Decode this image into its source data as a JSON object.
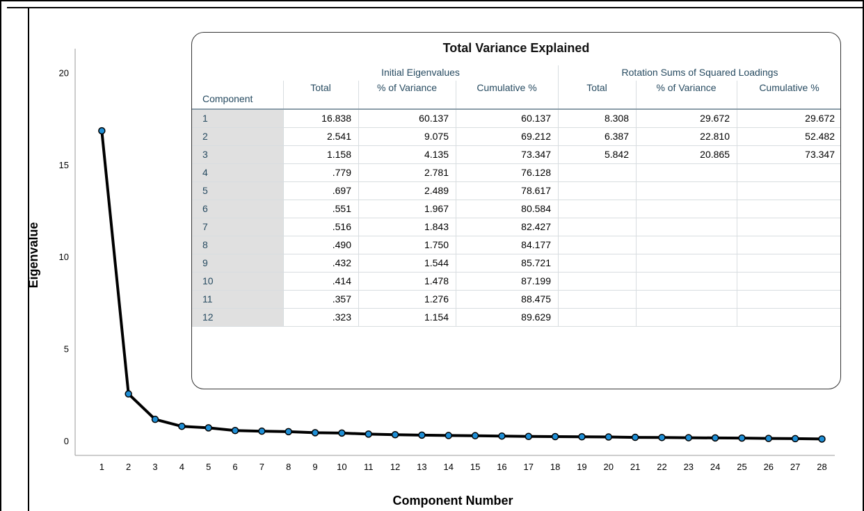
{
  "chart_data": {
    "type": "line",
    "xlabel": "Component Number",
    "ylabel": "Eigenvalue",
    "x": [
      1,
      2,
      3,
      4,
      5,
      6,
      7,
      8,
      9,
      10,
      11,
      12,
      13,
      14,
      15,
      16,
      17,
      18,
      19,
      20,
      21,
      22,
      23,
      24,
      25,
      26,
      27,
      28
    ],
    "y": [
      16.838,
      2.541,
      1.158,
      0.779,
      0.697,
      0.551,
      0.516,
      0.49,
      0.432,
      0.414,
      0.357,
      0.323,
      0.3,
      0.28,
      0.27,
      0.25,
      0.23,
      0.22,
      0.21,
      0.2,
      0.18,
      0.17,
      0.16,
      0.15,
      0.14,
      0.12,
      0.11,
      0.09
    ],
    "yticks": [
      "0",
      "5",
      "10",
      "15",
      "20"
    ],
    "ylim": [
      -0.8,
      21.3
    ],
    "xlim": [
      0,
      28.9
    ],
    "line_color": "#000000",
    "marker_color": "#1f8fd6",
    "grid": false
  },
  "table": {
    "title": "Total Variance Explained",
    "group_initial": "Initial Eigenvalues",
    "group_rotation": "Rotation Sums of Squared Loadings",
    "component_label": "Component",
    "columns": [
      "Total",
      "% of Variance",
      "Cumulative %",
      "Total",
      "% of Variance",
      "Cumulative %"
    ],
    "rows": [
      [
        "1",
        "16.838",
        "60.137",
        "60.137",
        "8.308",
        "29.672",
        "29.672"
      ],
      [
        "2",
        "2.541",
        "9.075",
        "69.212",
        "6.387",
        "22.810",
        "52.482"
      ],
      [
        "3",
        "1.158",
        "4.135",
        "73.347",
        "5.842",
        "20.865",
        "73.347"
      ],
      [
        "4",
        ".779",
        "2.781",
        "76.128",
        "",
        "",
        ""
      ],
      [
        "5",
        ".697",
        "2.489",
        "78.617",
        "",
        "",
        ""
      ],
      [
        "6",
        ".551",
        "1.967",
        "80.584",
        "",
        "",
        ""
      ],
      [
        "7",
        ".516",
        "1.843",
        "82.427",
        "",
        "",
        ""
      ],
      [
        "8",
        ".490",
        "1.750",
        "84.177",
        "",
        "",
        ""
      ],
      [
        "9",
        ".432",
        "1.544",
        "85.721",
        "",
        "",
        ""
      ],
      [
        "10",
        ".414",
        "1.478",
        "87.199",
        "",
        "",
        ""
      ],
      [
        "11",
        ".357",
        "1.276",
        "88.475",
        "",
        "",
        ""
      ],
      [
        "12",
        ".323",
        "1.154",
        "89.629",
        "",
        "",
        ""
      ]
    ]
  }
}
